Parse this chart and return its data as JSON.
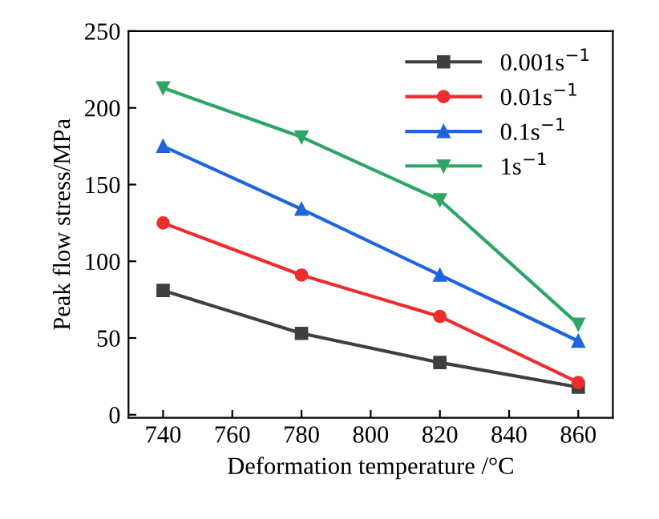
{
  "chart_data": {
    "type": "line",
    "xlabel": "Deformation temperature /°C",
    "ylabel": "Peak flow stress/MPa",
    "x": [
      740,
      780,
      820,
      860
    ],
    "series": [
      {
        "name": "0.001s$^{−1}$",
        "color": "#3f3f3f",
        "marker": "square",
        "values": [
          81,
          53,
          34,
          18
        ]
      },
      {
        "name": "0.01s$^{−1}$",
        "color": "#ed2d2d",
        "marker": "circle",
        "values": [
          125,
          91,
          64,
          21
        ]
      },
      {
        "name": "0.1s$^{−1}$",
        "color": "#1e64dc",
        "marker": "triangle",
        "values": [
          175,
          134,
          91,
          48
        ]
      },
      {
        "name": "1s$^{−1}$",
        "color": "#2ea564",
        "marker": "triangle_down",
        "values": [
          213,
          181,
          140,
          59
        ]
      }
    ],
    "xlim": [
      730,
      870
    ],
    "xticks": [
      740,
      760,
      780,
      800,
      820,
      840,
      860
    ],
    "ylim": [
      -2,
      250
    ],
    "yticks": [
      0,
      50,
      100,
      150,
      200,
      250
    ],
    "grid": false,
    "legend": "top right",
    "line_style": "solid"
  }
}
